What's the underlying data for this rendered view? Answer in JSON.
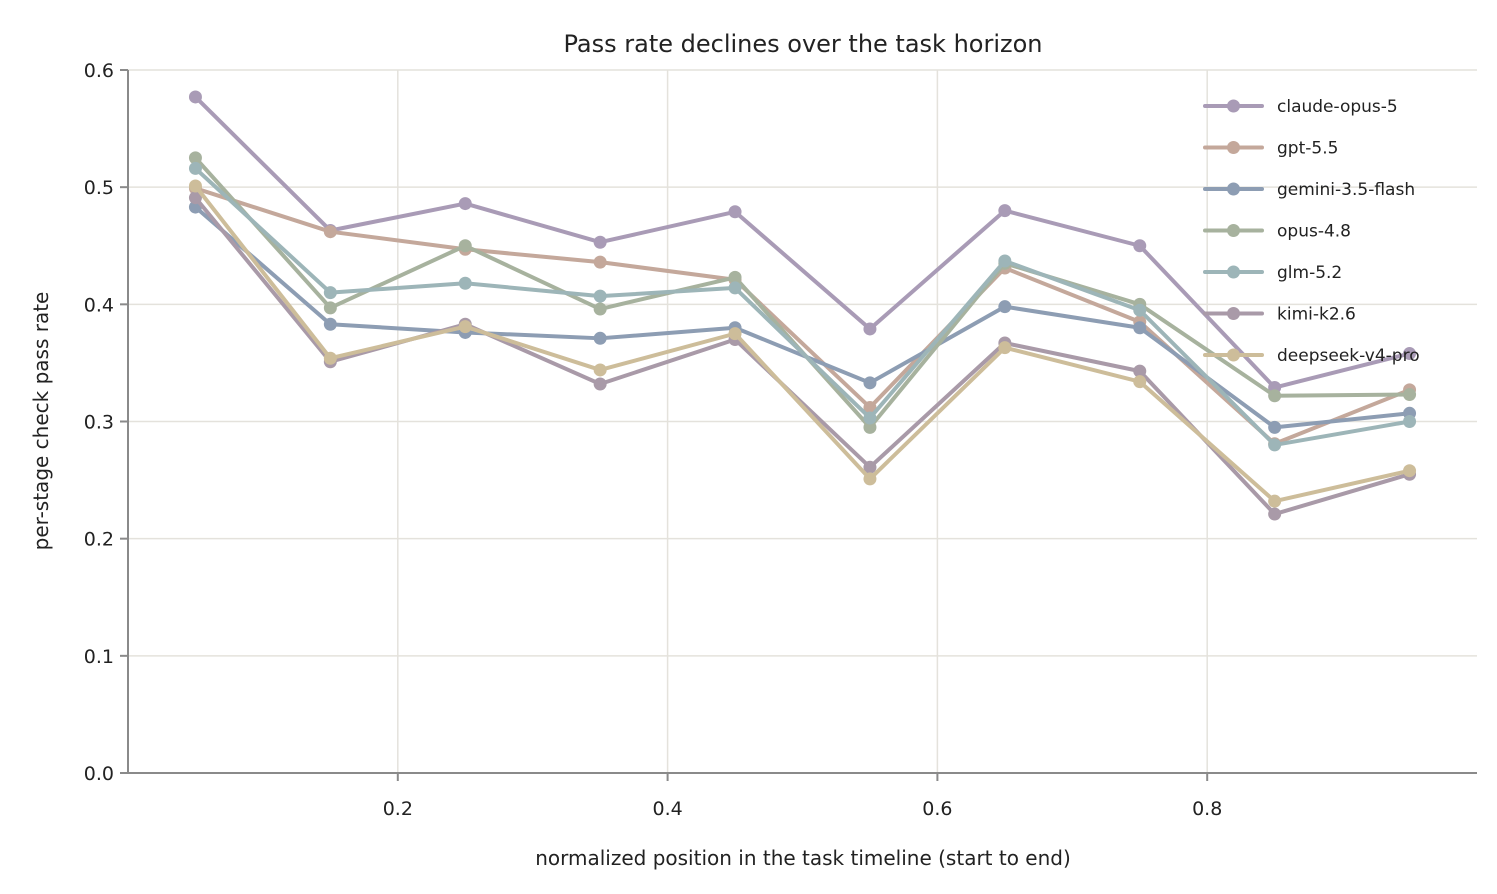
{
  "chart_data": {
    "type": "line",
    "title": "Pass rate declines over the task horizon",
    "xlabel": "normalized position in the task timeline (start to end)",
    "ylabel": "per-stage check pass rate",
    "xlim": [
      0.0,
      1.0
    ],
    "ylim": [
      0.0,
      0.6
    ],
    "xticks": [
      0.2,
      0.4,
      0.6,
      0.8
    ],
    "xtick_labels": [
      "0.2",
      "0.4",
      "0.6",
      "0.8"
    ],
    "yticks": [
      0.0,
      0.1,
      0.2,
      0.3,
      0.4,
      0.5,
      0.6
    ],
    "ytick_labels": [
      "0.0",
      "0.1",
      "0.2",
      "0.3",
      "0.4",
      "0.5",
      "0.6"
    ],
    "grid": true,
    "legend_position": "top-right",
    "x": [
      0.05,
      0.15,
      0.25,
      0.35,
      0.45,
      0.55,
      0.65,
      0.75,
      0.85,
      0.95
    ],
    "series": [
      {
        "name": "claude-opus-5",
        "color": "#a99bb6",
        "values": [
          0.577,
          0.463,
          0.486,
          0.453,
          0.479,
          0.379,
          0.48,
          0.45,
          0.329,
          0.358
        ]
      },
      {
        "name": "gpt-5.5",
        "color": "#c4a89b",
        "values": [
          0.499,
          0.462,
          0.447,
          0.436,
          0.421,
          0.312,
          0.431,
          0.385,
          0.281,
          0.327
        ]
      },
      {
        "name": "gemini-3.5-flash",
        "color": "#8d9db3",
        "values": [
          0.483,
          0.383,
          0.376,
          0.371,
          0.38,
          0.333,
          0.398,
          0.38,
          0.295,
          0.307
        ]
      },
      {
        "name": "opus-4.8",
        "color": "#a7b29e",
        "values": [
          0.525,
          0.397,
          0.45,
          0.396,
          0.423,
          0.295,
          0.435,
          0.4,
          0.322,
          0.323
        ]
      },
      {
        "name": "glm-5.2",
        "color": "#9db5b8",
        "values": [
          0.516,
          0.41,
          0.418,
          0.407,
          0.414,
          0.303,
          0.437,
          0.395,
          0.28,
          0.3
        ]
      },
      {
        "name": "kimi-k2.6",
        "color": "#a99aa8",
        "values": [
          0.491,
          0.351,
          0.383,
          0.332,
          0.37,
          0.261,
          0.367,
          0.343,
          0.221,
          0.255
        ]
      },
      {
        "name": "deepseek-v4-pro",
        "color": "#cdbd9a",
        "values": [
          0.501,
          0.354,
          0.381,
          0.344,
          0.375,
          0.251,
          0.363,
          0.334,
          0.232,
          0.258
        ]
      }
    ]
  }
}
